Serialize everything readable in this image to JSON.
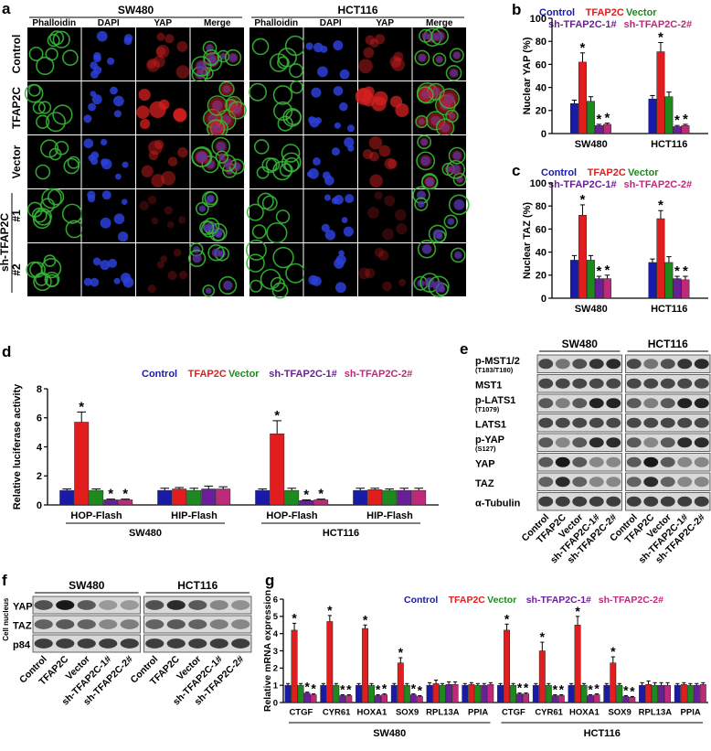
{
  "colors": {
    "control": "#1a1aa8",
    "tfap2c": "#e21d1d",
    "vector": "#1e8a1e",
    "sh1": "#6a1f9a",
    "sh2": "#c0287a",
    "phalloidin": "#35b535",
    "dapi": "#2b3fd8",
    "yap": "#d42020"
  },
  "legend": {
    "control": "Control",
    "tfap2c": "TFAP2C",
    "vector": "Vector",
    "sh1": "sh-TFAP2C-1#",
    "sh2": "sh-TFAP2C-2#"
  },
  "panel_a": {
    "letter": "a",
    "cell_lines": [
      "SW480",
      "HCT116"
    ],
    "stains": [
      "Phalloidin",
      "DAPI",
      "YAP",
      "Merge"
    ],
    "rows": [
      "Control",
      "TFAP2C",
      "Vector",
      "#1",
      "#2"
    ],
    "group_label": "sh-TFAP2C"
  },
  "panel_e": {
    "letter": "e",
    "cell_lines": [
      "SW480",
      "HCT116"
    ],
    "proteins": [
      {
        "name": "p-MST1/2",
        "sub": "(T183/T180)"
      },
      {
        "name": "MST1",
        "sub": ""
      },
      {
        "name": "p-LATS1",
        "sub": "(T1079)"
      },
      {
        "name": "LATS1",
        "sub": ""
      },
      {
        "name": "p-YAP",
        "sub": "(S127)"
      },
      {
        "name": "YAP",
        "sub": ""
      },
      {
        "name": "TAZ",
        "sub": ""
      },
      {
        "name": "α-Tubulin",
        "sub": ""
      }
    ],
    "lanes": [
      "Control",
      "TFAP2C",
      "Vector",
      "sh-TFAP2C-1#",
      "sh-TFAP2C-2#"
    ]
  },
  "panel_f": {
    "letter": "f",
    "cell_lines": [
      "SW480",
      "HCT116"
    ],
    "side_label": "Cell nucleus",
    "proteins": [
      "YAP",
      "TAZ",
      "p84"
    ],
    "lanes": [
      "Control",
      "TFAP2C",
      "Vector",
      "sh-TFAP2C-1#",
      "sh-TFAP2C-2#"
    ]
  },
  "chart_data": [
    {
      "panel": "b",
      "type": "bar",
      "ylabel": "Nuclear YAP (%)",
      "ylim": [
        0,
        100
      ],
      "yticks": [
        0,
        20,
        40,
        60,
        80,
        100
      ],
      "categories": [
        "SW480",
        "HCT116"
      ],
      "series": [
        {
          "name": "Control",
          "values": [
            26,
            30
          ],
          "err": [
            3,
            3
          ]
        },
        {
          "name": "TFAP2C",
          "values": [
            62,
            71
          ],
          "err": [
            8,
            8
          ]
        },
        {
          "name": "Vector",
          "values": [
            28,
            32
          ],
          "err": [
            4,
            4
          ]
        },
        {
          "name": "sh-TFAP2C-1#",
          "values": [
            7,
            6
          ],
          "err": [
            1,
            1
          ]
        },
        {
          "name": "sh-TFAP2C-2#",
          "values": [
            8,
            7
          ],
          "err": [
            1,
            1
          ]
        }
      ],
      "stars": [
        [
          false,
          true,
          false,
          true,
          true
        ],
        [
          false,
          true,
          false,
          true,
          true
        ]
      ]
    },
    {
      "panel": "c",
      "type": "bar",
      "ylabel": "Nuclear TAZ (%)",
      "ylim": [
        0,
        100
      ],
      "yticks": [
        0,
        20,
        40,
        60,
        80,
        100
      ],
      "categories": [
        "SW480",
        "HCT116"
      ],
      "series": [
        {
          "name": "Control",
          "values": [
            33,
            31
          ],
          "err": [
            4,
            3
          ]
        },
        {
          "name": "TFAP2C",
          "values": [
            72,
            69
          ],
          "err": [
            9,
            7
          ]
        },
        {
          "name": "Vector",
          "values": [
            33,
            31
          ],
          "err": [
            4,
            5
          ]
        },
        {
          "name": "sh-TFAP2C-1#",
          "values": [
            17,
            17
          ],
          "err": [
            2,
            2
          ]
        },
        {
          "name": "sh-TFAP2C-2#",
          "values": [
            17,
            16
          ],
          "err": [
            3,
            3
          ]
        }
      ],
      "stars": [
        [
          false,
          true,
          false,
          true,
          true
        ],
        [
          false,
          true,
          false,
          true,
          true
        ]
      ]
    },
    {
      "panel": "d",
      "type": "bar",
      "ylabel": "Relative luciferase activity",
      "ylim": [
        0,
        8
      ],
      "yticks": [
        0,
        2,
        4,
        6,
        8
      ],
      "categories": [
        "HOP-Flash",
        "HIP-Flash",
        "HOP-Flash",
        "HIP-Flash"
      ],
      "groups": [
        {
          "label": "SW480",
          "categories": [
            0,
            1
          ]
        },
        {
          "label": "HCT116",
          "categories": [
            2,
            3
          ]
        }
      ],
      "series": [
        {
          "name": "Control",
          "values": [
            1.0,
            1.0,
            1.0,
            1.0
          ],
          "err": [
            0.1,
            0.15,
            0.1,
            0.15
          ]
        },
        {
          "name": "TFAP2C",
          "values": [
            5.7,
            1.1,
            4.9,
            1.05
          ],
          "err": [
            0.7,
            0.1,
            0.9,
            0.1
          ]
        },
        {
          "name": "Vector",
          "values": [
            1.0,
            1.0,
            1.0,
            1.0
          ],
          "err": [
            0.1,
            0.15,
            0.15,
            0.1
          ]
        },
        {
          "name": "sh-TFAP2C-1#",
          "values": [
            0.35,
            1.1,
            0.3,
            1.0
          ],
          "err": [
            0.05,
            0.2,
            0.05,
            0.15
          ]
        },
        {
          "name": "sh-TFAP2C-2#",
          "values": [
            0.35,
            1.1,
            0.35,
            1.0
          ],
          "err": [
            0.05,
            0.15,
            0.05,
            0.15
          ]
        }
      ],
      "stars": [
        [
          false,
          true,
          false,
          true,
          true
        ],
        [
          false,
          false,
          false,
          false,
          false
        ],
        [
          false,
          true,
          false,
          true,
          true
        ],
        [
          false,
          false,
          false,
          false,
          false
        ]
      ]
    },
    {
      "panel": "g",
      "type": "bar",
      "ylabel": "Relative mRNA expression",
      "ylim": [
        0,
        6
      ],
      "yticks": [
        0,
        1,
        2,
        3,
        4,
        5,
        6
      ],
      "categories": [
        "CTGF",
        "CYR61",
        "HOXA1",
        "SOX9",
        "RPL13A",
        "PPIA",
        "CTGF",
        "CYR61",
        "HOXA1",
        "SOX9",
        "RPL13A",
        "PPIA"
      ],
      "groups": [
        {
          "label": "SW480",
          "categories": [
            0,
            5
          ]
        },
        {
          "label": "HCT116",
          "categories": [
            6,
            11
          ]
        }
      ],
      "series": [
        {
          "name": "Control",
          "values": [
            1,
            1,
            1,
            1,
            1,
            1,
            1,
            1,
            1,
            1,
            1,
            1
          ],
          "err": [
            0.1,
            0.1,
            0.1,
            0.1,
            0.15,
            0.1,
            0.1,
            0.1,
            0.1,
            0.1,
            0.15,
            0.1
          ]
        },
        {
          "name": "TFAP2C",
          "values": [
            4.2,
            4.7,
            4.3,
            2.3,
            1.1,
            1.05,
            4.2,
            3.0,
            4.5,
            2.3,
            1.05,
            1.05
          ],
          "err": [
            0.4,
            0.35,
            0.2,
            0.3,
            0.2,
            0.1,
            0.35,
            0.5,
            0.5,
            0.35,
            0.2,
            0.1
          ]
        },
        {
          "name": "Vector",
          "values": [
            1,
            1,
            1,
            1,
            1,
            1,
            1,
            1,
            1,
            1,
            1,
            1
          ],
          "err": [
            0.1,
            0.1,
            0.1,
            0.1,
            0.1,
            0.1,
            0.1,
            0.1,
            0.1,
            0.1,
            0.15,
            0.1
          ]
        },
        {
          "name": "sh-TFAP2C-1#",
          "values": [
            0.55,
            0.4,
            0.4,
            0.45,
            1.05,
            1.0,
            0.5,
            0.4,
            0.4,
            0.35,
            1.0,
            1.0
          ],
          "err": [
            0.05,
            0.05,
            0.05,
            0.05,
            0.15,
            0.1,
            0.05,
            0.05,
            0.05,
            0.05,
            0.15,
            0.1
          ]
        },
        {
          "name": "sh-TFAP2C-2#",
          "values": [
            0.45,
            0.4,
            0.45,
            0.35,
            1.05,
            1.05,
            0.5,
            0.4,
            0.45,
            0.3,
            1.0,
            1.05
          ],
          "err": [
            0.05,
            0.05,
            0.05,
            0.05,
            0.15,
            0.1,
            0.05,
            0.05,
            0.05,
            0.05,
            0.15,
            0.1
          ]
        }
      ],
      "stars": [
        [
          false,
          true,
          false,
          true,
          true
        ],
        [
          false,
          true,
          false,
          true,
          true
        ],
        [
          false,
          true,
          false,
          true,
          true
        ],
        [
          false,
          true,
          false,
          true,
          true
        ],
        [
          false,
          false,
          false,
          false,
          false
        ],
        [
          false,
          false,
          false,
          false,
          false
        ],
        [
          false,
          true,
          false,
          true,
          true
        ],
        [
          false,
          true,
          false,
          true,
          true
        ],
        [
          false,
          true,
          false,
          true,
          true
        ],
        [
          false,
          true,
          false,
          true,
          true
        ],
        [
          false,
          false,
          false,
          false,
          false
        ],
        [
          false,
          false,
          false,
          false,
          false
        ]
      ]
    }
  ]
}
